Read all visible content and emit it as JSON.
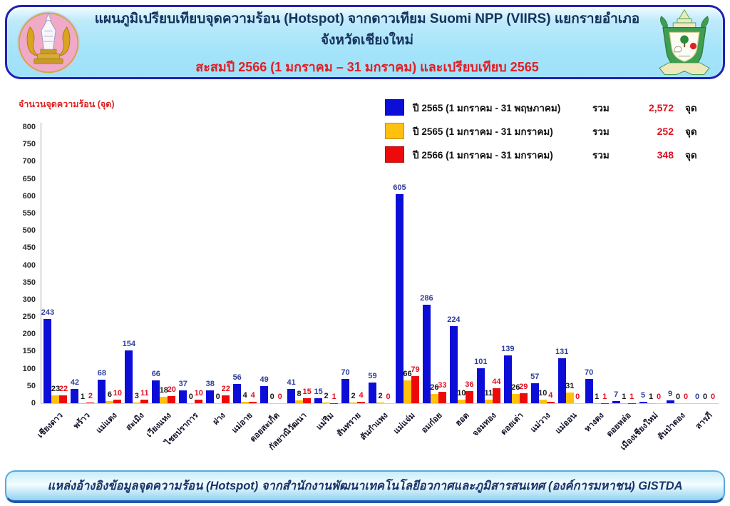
{
  "header": {
    "title_line1": "แผนภูมิเปรียบเทียบจุดความร้อน (Hotspot) จากดาวเทียม Suomi NPP (VIIRS) แยกรายอำเภอ จังหวัดเชียงใหม่",
    "title_line2": "สะสมปี 2566 (1 มกราคม – 31 มกราคม) และเปรียบเทียบ 2565"
  },
  "legend": {
    "total_word": "รวม",
    "unit_word": "จุด",
    "items": [
      {
        "label": "ปี 2565 (1 มกราคม - 31 พฤษภาคม)",
        "total": "2,572",
        "color": "#0d0dd8"
      },
      {
        "label": "ปี 2565 (1 มกราคม - 31 มกราคม)",
        "total": "252",
        "color": "#ffc010"
      },
      {
        "label": "ปี 2566 (1 มกราคม - 31 มกราคม)",
        "total": "348",
        "color": "#ee0a0a"
      }
    ]
  },
  "chart_data": {
    "type": "bar",
    "title": "",
    "xlabel": "",
    "ylabel": "จำนวนจุดความร้อน (จุด)",
    "ylim": [
      0,
      800
    ],
    "ytick_step": 50,
    "grid": false,
    "legend_position": "top-right",
    "categories": [
      "เชียงดาว",
      "พร้าว",
      "แม่แตง",
      "สะเมิง",
      "เวียงแหง",
      "ไชยปราการ",
      "ฝาง",
      "แม่อาย",
      "ดอยสะเก็ด",
      "กัลยาณิวัฒนา",
      "แม่ริม",
      "สันทราย",
      "สันกำแพง",
      "แม่แจ่ม",
      "อมก๋อย",
      "ฮอด",
      "จอมทอง",
      "ดอยเต่า",
      "แม่วาง",
      "แม่ออน",
      "หางดง",
      "ดอยหล่อ",
      "เมืองเชียงใหม่",
      "สันป่าตอง",
      "สารภี"
    ],
    "series": [
      {
        "name": "ปี 2565 (1 มกราคม - 31 พฤษภาคม)",
        "color": "#0d0dd8",
        "label_color": "#2e3f9e",
        "total": 2572,
        "values": [
          243,
          42,
          68,
          154,
          66,
          37,
          38,
          56,
          49,
          41,
          15,
          70,
          59,
          605,
          286,
          224,
          101,
          139,
          57,
          131,
          70,
          7,
          5,
          9,
          0
        ]
      },
      {
        "name": "ปี 2565 (1 มกราคม - 31 มกราคม)",
        "color": "#ffc010",
        "label_color": "#1a1a1a",
        "total": 252,
        "values": [
          23,
          1,
          6,
          3,
          18,
          0,
          0,
          4,
          0,
          8,
          2,
          2,
          2,
          66,
          26,
          10,
          11,
          26,
          10,
          31,
          1,
          1,
          1,
          0,
          0
        ]
      },
      {
        "name": "ปี 2566 (1 มกราคม - 31 มกราคม)",
        "color": "#ee0a0a",
        "label_color": "#e01020",
        "total": 348,
        "values": [
          22,
          2,
          10,
          11,
          20,
          10,
          22,
          4,
          0,
          15,
          1,
          4,
          0,
          79,
          33,
          36,
          44,
          29,
          4,
          0,
          1,
          1,
          0,
          0,
          0
        ]
      }
    ]
  },
  "footer": {
    "text": "แหล่งอ้างอิงข้อมูลจุดความร้อน (Hotspot)  จากสำนักงานพัฒนาเทคโนโลยีอวกาศและภูมิสารสนเทศ (องค์การมหาชน) GISTDA"
  }
}
